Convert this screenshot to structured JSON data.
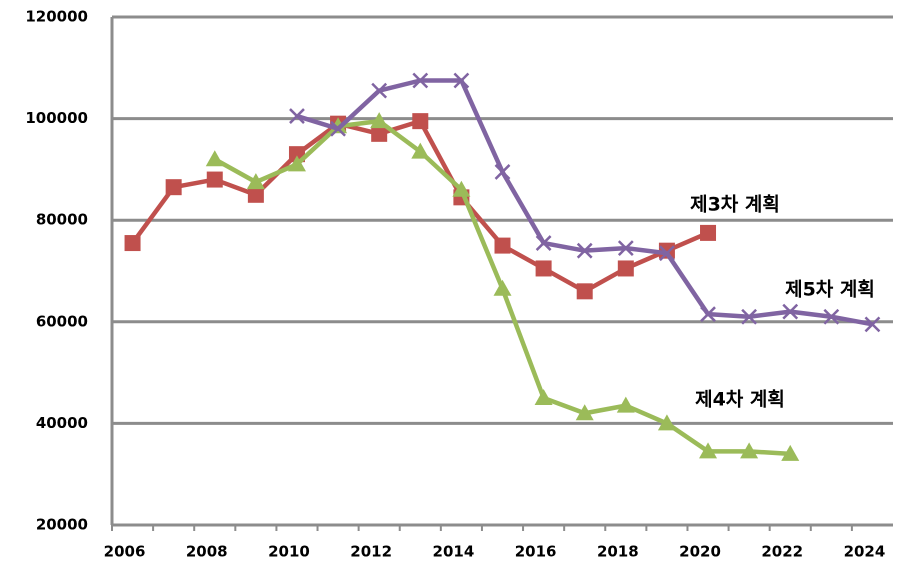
{
  "chart_data": {
    "type": "line",
    "categories": [
      "2006",
      null,
      "2008",
      null,
      "2010",
      null,
      "2012",
      null,
      "2014",
      null,
      "2016",
      null,
      "2018",
      null,
      "2020",
      null,
      "2022",
      null,
      "2024"
    ],
    "series": [
      {
        "name": "제3차 계획",
        "color": "#c0504d",
        "marker": "square",
        "values": [
          75500,
          86500,
          88000,
          85000,
          93000,
          99000,
          97000,
          99500,
          84500,
          75000,
          70500,
          66000,
          70500,
          74000,
          77500,
          null,
          null,
          null,
          null
        ]
      },
      {
        "name": "제4차 계획",
        "color": "#9bbb59",
        "marker": "triangle",
        "values": [
          null,
          null,
          92000,
          87500,
          91000,
          98500,
          99500,
          93500,
          86000,
          66500,
          45000,
          42000,
          43500,
          40000,
          34500,
          34500,
          34000,
          null,
          null
        ]
      },
      {
        "name": "제5차 계획",
        "color": "#8064a2",
        "marker": "x",
        "values": [
          null,
          null,
          null,
          null,
          100500,
          98000,
          105500,
          107500,
          107500,
          89500,
          75500,
          74000,
          74500,
          73500,
          61500,
          61000,
          62000,
          61000,
          59500
        ]
      }
    ],
    "ylim": [
      20000,
      120000
    ],
    "yticks": [
      20000,
      40000,
      60000,
      80000,
      100000,
      120000
    ],
    "grid": true
  }
}
